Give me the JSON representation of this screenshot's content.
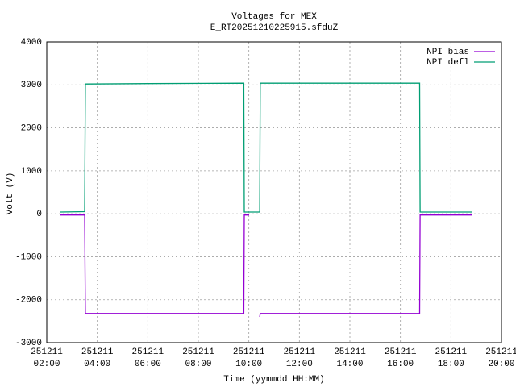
{
  "chart_data": {
    "type": "line",
    "title": "Voltages for MEX",
    "subtitle": "E_RT20251210225915.sfduZ",
    "x_label": "Time (yymmdd HH:MM)",
    "y_label": "Volt (V)",
    "xlim": [
      2,
      20
    ],
    "xticks": [
      {
        "value": 2,
        "label": "251211\n02:00"
      },
      {
        "value": 4,
        "label": "251211\n04:00"
      },
      {
        "value": 6,
        "label": "251211\n06:00"
      },
      {
        "value": 8,
        "label": "251211\n08:00"
      },
      {
        "value": 10,
        "label": "251211\n10:00"
      },
      {
        "value": 12,
        "label": "251211\n12:00"
      },
      {
        "value": 14,
        "label": "251211\n14:00"
      },
      {
        "value": 16,
        "label": "251211\n16:00"
      },
      {
        "value": 18,
        "label": "251211\n18:00"
      },
      {
        "value": 20,
        "label": "251211\n20:00"
      }
    ],
    "ylim": [
      -3000,
      4000
    ],
    "yticks": [
      -3000,
      -2000,
      -1000,
      0,
      1000,
      2000,
      3000,
      4000
    ],
    "grid": true,
    "legend": "top-right",
    "series": [
      {
        "name": "NPI bias",
        "color": "#9400d3",
        "x": [
          2.54,
          3.5,
          3.53,
          9.8,
          9.82,
          10.01,
          10.2,
          10.43,
          10.45,
          16.76,
          16.78,
          18.85
        ],
        "values": [
          -30,
          -30,
          -2320,
          -2320,
          -30,
          -30,
          null,
          -2400,
          -2320,
          -2320,
          -30,
          -30
        ]
      },
      {
        "name": "NPI defl",
        "color": "#009e73",
        "x": [
          2.54,
          3.5,
          3.53,
          6,
          9.8,
          9.82,
          10.43,
          10.45,
          16.76,
          16.78,
          18.85
        ],
        "values": [
          40,
          50,
          3020,
          3030,
          3040,
          40,
          40,
          3040,
          3040,
          40,
          40
        ]
      }
    ]
  }
}
